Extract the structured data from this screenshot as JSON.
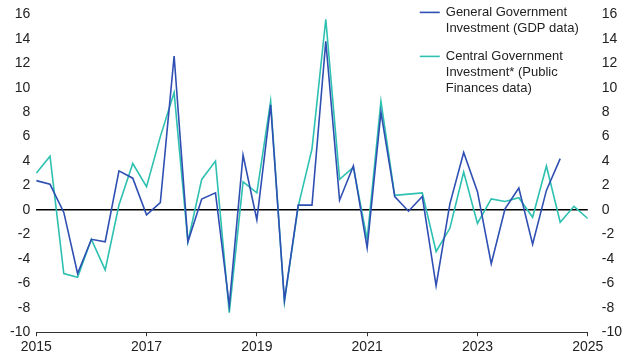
{
  "chart_data": {
    "type": "line",
    "x": [
      "2015",
      null,
      null,
      null,
      null,
      null,
      null,
      null,
      "2017",
      null,
      null,
      null,
      null,
      null,
      null,
      null,
      "2019",
      null,
      null,
      null,
      null,
      null,
      null,
      null,
      "2021",
      null,
      null,
      null,
      null,
      null,
      null,
      null,
      "2023",
      null,
      null,
      null,
      null,
      null,
      null,
      null,
      "2025"
    ],
    "series": [
      {
        "name": "General Government Investment (GDP data)",
        "color": "#2f4fb3",
        "values": [
          2.4,
          2.1,
          -0.2,
          -5.2,
          -2.4,
          -2.6,
          3.2,
          2.6,
          -0.4,
          0.6,
          12.6,
          -2.6,
          0.9,
          1.4,
          -7.8,
          4.5,
          -0.8,
          8.6,
          -7.4,
          0.4,
          0.4,
          13.8,
          0.8,
          3.6,
          -3.1,
          8.0,
          1.1,
          -0.1,
          1.1,
          -6.2,
          0.5,
          4.7,
          1.5,
          -4.4,
          0.1,
          1.8,
          -2.8,
          1.6,
          4.2,
          null,
          null
        ]
      },
      {
        "name": "Central Government Investment* (Public Finances data)",
        "color": "#2ec0b0",
        "values": [
          3.0,
          4.4,
          -5.2,
          -5.5,
          -2.4,
          -4.9,
          0.4,
          3.8,
          1.9,
          6.0,
          9.6,
          -2.6,
          2.5,
          4.0,
          -8.4,
          2.3,
          1.4,
          8.9,
          -7.5,
          0.3,
          5.0,
          15.6,
          2.5,
          3.5,
          -2.4,
          8.9,
          1.2,
          1.3,
          1.4,
          -3.4,
          -1.5,
          3.1,
          -1.1,
          0.9,
          0.7,
          1.0,
          -0.6,
          3.6,
          -1.0,
          0.3,
          -0.7
        ]
      }
    ],
    "ylim": [
      -10,
      16
    ],
    "yticks": [
      -10,
      -8,
      -6,
      -4,
      -2,
      0,
      2,
      4,
      6,
      8,
      10,
      12,
      14,
      16
    ],
    "y2lim": [
      -10,
      16
    ],
    "y2ticks": [
      -10,
      -8,
      -6,
      -4,
      -2,
      0,
      2,
      4,
      6,
      8,
      10,
      12,
      14,
      16
    ],
    "grid": false,
    "legend": "upper right"
  }
}
